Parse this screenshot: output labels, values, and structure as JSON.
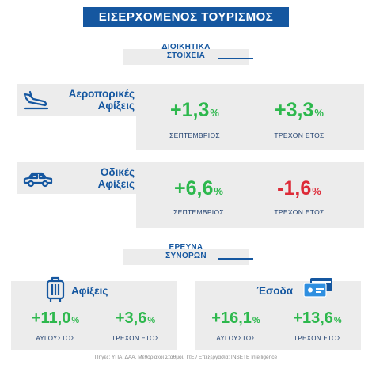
{
  "title": "ΕΙΣΕΡΧΟΜΕΝΟΣ ΤΟΥΡΙΣΜΟΣ",
  "admin_section": {
    "line1": "ΔΙΟΙΚΗΤΙΚΑ",
    "line2": "ΣΤΟΙΧΕΙΑ"
  },
  "air": {
    "label1": "Αεροπορικές",
    "label2": "Αφίξεις",
    "icon": "airplane-landing-icon",
    "m1": {
      "value": "+1,3",
      "unit": "%",
      "caption": "ΣΕΠΤΕΜΒΡΙΟΣ"
    },
    "m2": {
      "value": "+3,3",
      "unit": "%",
      "caption": "ΤΡΕΧΟΝ ΕΤΟΣ"
    }
  },
  "road": {
    "label1": "Οδικές",
    "label2": "Αφίξεις",
    "icon": "car-icon",
    "m1": {
      "value": "+6,6",
      "unit": "%",
      "caption": "ΣΕΠΤΕΜΒΡΙΟΣ"
    },
    "m2": {
      "value": "-1,6",
      "unit": "%",
      "caption": "ΤΡΕΧΟΝ ΕΤΟΣ"
    }
  },
  "border_section": {
    "line1": "ΕΡΕΥΝΑ",
    "line2": "ΣΥΝΟΡΩΝ"
  },
  "arrivals": {
    "label": "Αφίξεις",
    "icon": "luggage-icon",
    "m1": {
      "value": "+11,0",
      "unit": "%",
      "caption": "ΑΥΓΟΥΣΤΟΣ"
    },
    "m2": {
      "value": "+3,6",
      "unit": "%",
      "caption": "ΤΡΕΧΟΝ ΕΤΟΣ"
    }
  },
  "receipts": {
    "label": "Έσοδα",
    "icon": "credit-card-icon",
    "m1": {
      "value": "+16,1",
      "unit": "%",
      "caption": "ΑΥΓΟΥΣΤΟΣ"
    },
    "m2": {
      "value": "+13,6",
      "unit": "%",
      "caption": "ΤΡΕΧΟΝ ΕΤΟΣ"
    }
  },
  "colors": {
    "blue": "#1557a0",
    "green": "#2db84d",
    "red": "#dd2b38",
    "panel": "#ececec"
  },
  "source": "Πηγές: ΥΠΑ, ΔΑΑ, Μεθοριακοί Σταθμοί, ΤτΕ / Επεξεργασία: INSETE Intelligence"
}
